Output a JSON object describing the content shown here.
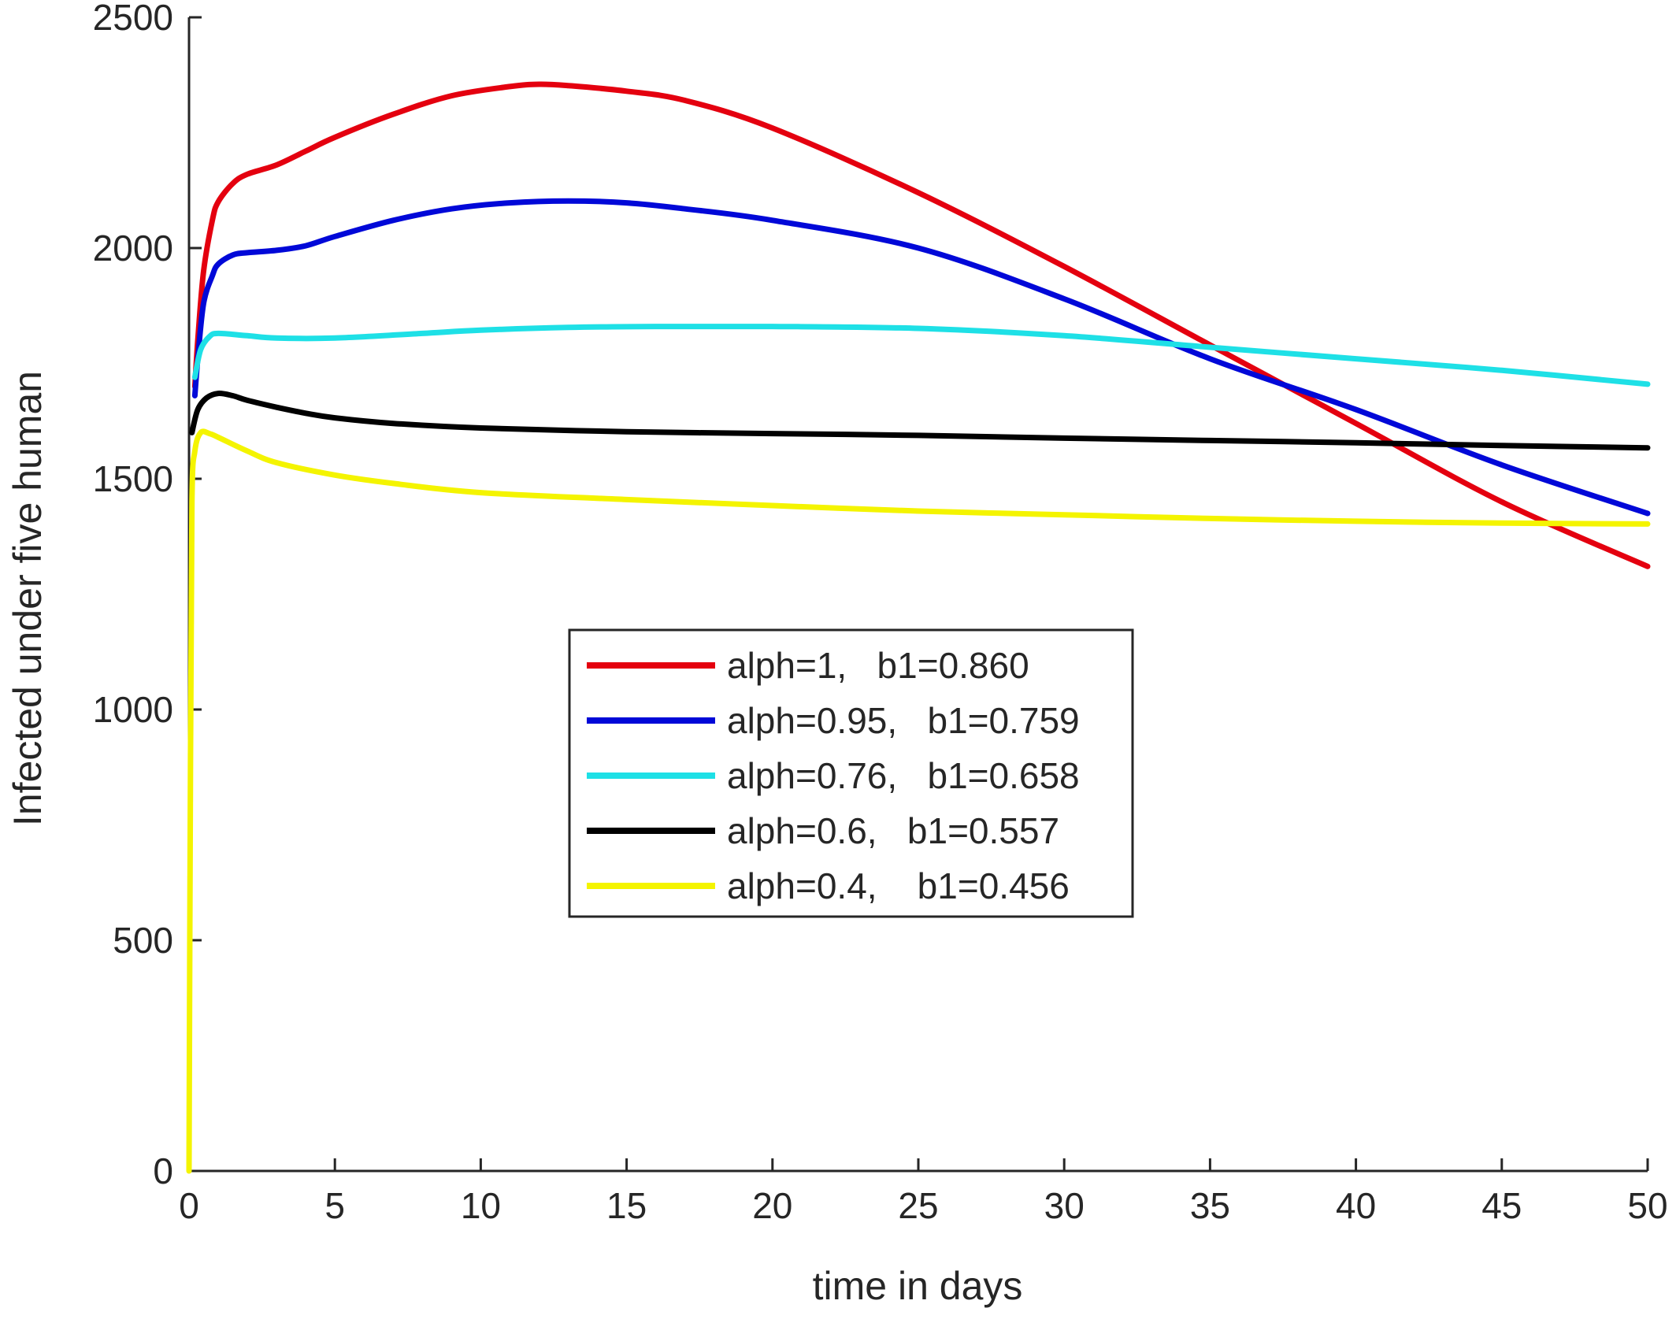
{
  "chart_data": {
    "type": "line",
    "title": "",
    "xlabel": "time in days",
    "ylabel": "Infected under five human",
    "xlim": [
      0,
      50
    ],
    "ylim": [
      0,
      2500
    ],
    "xticks": [
      0,
      5,
      10,
      15,
      20,
      25,
      30,
      35,
      40,
      45,
      50
    ],
    "yticks": [
      0,
      500,
      1000,
      1500,
      2000,
      2500
    ],
    "grid": false,
    "legend_position": "center",
    "series": [
      {
        "name": "alph=1,   b1=0.860",
        "color": "#e4000f",
        "x": [
          0.2,
          0.3,
          0.5,
          0.8,
          1,
          1.5,
          2,
          3,
          4,
          5,
          7,
          9,
          11,
          12,
          13,
          15,
          17,
          20,
          25,
          30,
          35,
          40,
          45,
          50
        ],
        "y": [
          1700,
          1800,
          1950,
          2060,
          2100,
          2140,
          2160,
          2180,
          2210,
          2240,
          2290,
          2330,
          2350,
          2355,
          2352,
          2340,
          2320,
          2260,
          2120,
          1960,
          1790,
          1620,
          1450,
          1310
        ]
      },
      {
        "name": "alph=0.95,   b1=0.759",
        "color": "#0008d8",
        "x": [
          0.2,
          0.3,
          0.5,
          0.8,
          1,
          1.5,
          2,
          3,
          4,
          5,
          7,
          9,
          11,
          13,
          15,
          17,
          20,
          25,
          30,
          35,
          40,
          45,
          50
        ],
        "y": [
          1680,
          1760,
          1880,
          1940,
          1965,
          1985,
          1990,
          1995,
          2005,
          2025,
          2060,
          2085,
          2098,
          2102,
          2098,
          2085,
          2060,
          2000,
          1890,
          1760,
          1650,
          1530,
          1425
        ]
      },
      {
        "name": "alph=0.76,   b1=0.658",
        "color": "#1ee0e6",
        "x": [
          0.2,
          0.4,
          0.7,
          1,
          2,
          3,
          5,
          8,
          10,
          13,
          16,
          20,
          25,
          30,
          35,
          40,
          45,
          50
        ],
        "y": [
          1720,
          1780,
          1808,
          1815,
          1810,
          1805,
          1805,
          1815,
          1822,
          1828,
          1830,
          1830,
          1826,
          1810,
          1785,
          1760,
          1735,
          1705
        ]
      },
      {
        "name": "alph=0.6,   b1=0.557",
        "color": "#000000",
        "x": [
          0.1,
          0.3,
          0.6,
          1,
          1.5,
          2,
          3,
          4,
          5,
          7,
          10,
          15,
          20,
          25,
          30,
          35,
          40,
          45,
          50
        ],
        "y": [
          1600,
          1650,
          1675,
          1685,
          1680,
          1670,
          1655,
          1642,
          1632,
          1620,
          1610,
          1602,
          1598,
          1594,
          1588,
          1583,
          1578,
          1572,
          1567
        ]
      },
      {
        "name": "alph=0.4,    b1=0.456",
        "color": "#f4f400",
        "x": [
          0,
          0.05,
          0.1,
          0.2,
          0.4,
          0.7,
          1,
          2,
          3,
          5,
          7,
          10,
          15,
          20,
          25,
          30,
          35,
          40,
          45,
          50
        ],
        "y": [
          0,
          900,
          1450,
          1560,
          1600,
          1598,
          1590,
          1560,
          1535,
          1508,
          1490,
          1470,
          1455,
          1442,
          1430,
          1422,
          1414,
          1408,
          1404,
          1402
        ]
      }
    ]
  }
}
